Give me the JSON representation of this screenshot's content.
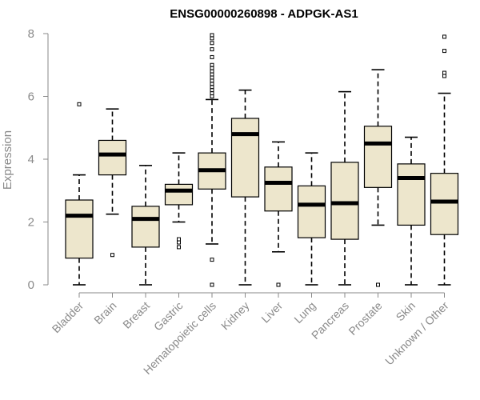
{
  "chart_data": {
    "type": "boxplot",
    "title": "ENSG00000260898 - ADPGK-AS1",
    "xlabel": "",
    "ylabel": "Expression",
    "ylim": [
      0,
      8
    ],
    "yticks": [
      0,
      2,
      4,
      6,
      8
    ],
    "grid": false,
    "categories": [
      "Bladder",
      "Brain",
      "Breast",
      "Gastric",
      "Hematopoietic cells",
      "Kidney",
      "Liver",
      "Lung",
      "Pancreas",
      "Prostate",
      "Skin",
      "Unknown / Other"
    ],
    "boxes": [
      {
        "category": "Bladder",
        "min": 0.0,
        "q1": 0.85,
        "median": 2.2,
        "q3": 2.7,
        "max": 3.5,
        "outliers": [
          5.75
        ]
      },
      {
        "category": "Brain",
        "min": 2.25,
        "q1": 3.5,
        "median": 4.15,
        "q3": 4.6,
        "max": 5.6,
        "outliers": [
          0.95
        ]
      },
      {
        "category": "Breast",
        "min": 0.0,
        "q1": 1.2,
        "median": 2.1,
        "q3": 2.5,
        "max": 3.8,
        "outliers": []
      },
      {
        "category": "Gastric",
        "min": 2.0,
        "q1": 2.55,
        "median": 3.0,
        "q3": 3.2,
        "max": 4.2,
        "outliers": [
          1.2,
          1.35,
          1.45
        ]
      },
      {
        "category": "Hematopoietic cells",
        "min": 1.3,
        "q1": 3.05,
        "median": 3.65,
        "q3": 4.2,
        "max": 5.9,
        "outliers": [
          0.0,
          0.8,
          6.0,
          6.1,
          6.2,
          6.3,
          6.4,
          6.5,
          6.6,
          6.7,
          6.8,
          6.9,
          7.0,
          7.25,
          7.5,
          7.7,
          7.85,
          7.95
        ]
      },
      {
        "category": "Kidney",
        "min": 0.0,
        "q1": 2.8,
        "median": 4.8,
        "q3": 5.3,
        "max": 6.2,
        "outliers": []
      },
      {
        "category": "Liver",
        "min": 1.05,
        "q1": 2.35,
        "median": 3.25,
        "q3": 3.75,
        "max": 4.55,
        "outliers": [
          0.0
        ]
      },
      {
        "category": "Lung",
        "min": 0.0,
        "q1": 1.5,
        "median": 2.55,
        "q3": 3.15,
        "max": 4.2,
        "outliers": []
      },
      {
        "category": "Pancreas",
        "min": 0.0,
        "q1": 1.45,
        "median": 2.6,
        "q3": 3.9,
        "max": 6.15,
        "outliers": []
      },
      {
        "category": "Prostate",
        "min": 1.9,
        "q1": 3.1,
        "median": 4.5,
        "q3": 5.05,
        "max": 6.85,
        "outliers": [
          0.0
        ]
      },
      {
        "category": "Skin",
        "min": 0.0,
        "q1": 1.9,
        "median": 3.4,
        "q3": 3.85,
        "max": 4.7,
        "outliers": []
      },
      {
        "category": "Unknown / Other",
        "min": 0.0,
        "q1": 1.6,
        "median": 2.65,
        "q3": 3.55,
        "max": 6.1,
        "outliers": [
          6.65,
          6.75,
          7.45,
          7.9
        ]
      }
    ]
  },
  "colors": {
    "box_fill": "#ede6cc",
    "stroke": "#000000",
    "axis": "#8a8a8a"
  }
}
